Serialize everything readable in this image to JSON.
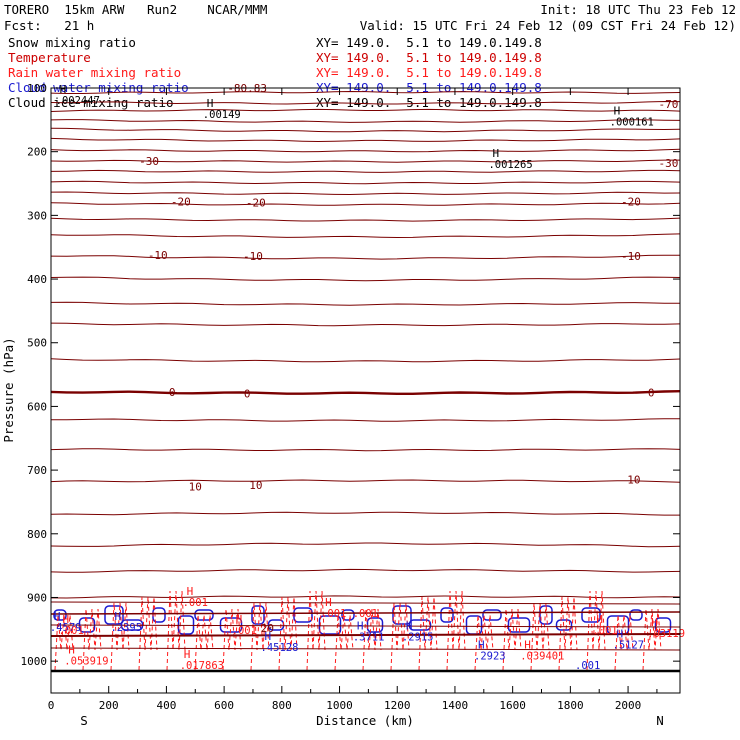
{
  "header": {
    "model": "TORERO  15km ARW   Run2    NCAR/MMM",
    "init": "Init: 18 UTC Thu 23 Feb 12",
    "fcst": "Fcst:   21 h",
    "valid": "Valid: 15 UTC Fri 24 Feb 12 (09 CST Fri 24 Feb 12)"
  },
  "colors": {
    "black": "#000000",
    "temperature": "#7a0000",
    "rain": "#ff1a1a",
    "cloud_water": "#1a1ad0",
    "ice": "#000000"
  },
  "legend": [
    {
      "label": "Snow mixing ratio",
      "xy": "XY= 149.0.  5.1 to 149.0.149.8",
      "color": "#000000"
    },
    {
      "label": "Temperature",
      "xy": "XY= 149.0.  5.1 to 149.0.149.8",
      "color": "#cc0000"
    },
    {
      "label": "Rain water mixing ratio",
      "xy": "XY= 149.0.  5.1 to 149.0.149.8",
      "color": "#ff1a1a"
    },
    {
      "label": "Cloud water mixing ratio",
      "xy": "XY= 149.0.  5.1 to 149.0.149.8",
      "color": "#1a1ad0"
    },
    {
      "label": "Cloud ice mixing ratio",
      "xy": "XY= 149.0.  5.1 to 149.0.149.8",
      "color": "#000000"
    }
  ],
  "chart_data": {
    "type": "contour-cross-section",
    "xlabel": "Distance (km)",
    "ylabel": "Pressure (hPa)",
    "xlim": [
      0,
      2180
    ],
    "ylim": [
      100,
      1050
    ],
    "x_ticks": [
      0,
      200,
      400,
      600,
      800,
      1000,
      1200,
      1400,
      1600,
      1800,
      2000
    ],
    "y_ticks": [
      200,
      300,
      400,
      500,
      600,
      700,
      800,
      900,
      1000
    ],
    "y_tick_labels": [
      "200",
      "300",
      "400",
      "500",
      "600",
      "700",
      "800",
      "900",
      "1000"
    ],
    "y_label_100": "100",
    "end_labels": {
      "left": "S",
      "right": "N"
    },
    "temperature_contours": [
      {
        "label": "-80.83",
        "x": 680,
        "p": 100
      },
      {
        "label": "-70",
        "x": 2140,
        "p": 125
      },
      {
        "label": "-30",
        "x": 340,
        "p": 215
      },
      {
        "label": "-30",
        "x": 2140,
        "p": 218
      },
      {
        "label": "-20",
        "x": 450,
        "p": 278
      },
      {
        "label": "-20",
        "x": 710,
        "p": 280
      },
      {
        "label": "-20",
        "x": 2010,
        "p": 278
      },
      {
        "label": "-10",
        "x": 370,
        "p": 362
      },
      {
        "label": "-10",
        "x": 700,
        "p": 364
      },
      {
        "label": "-10",
        "x": 2010,
        "p": 364
      },
      {
        "label": "0",
        "x": 420,
        "p": 577
      },
      {
        "label": "0",
        "x": 680,
        "p": 580
      },
      {
        "label": "0",
        "x": 2080,
        "p": 578
      },
      {
        "label": "10",
        "x": 500,
        "p": 726
      },
      {
        "label": "10",
        "x": 710,
        "p": 723
      },
      {
        "label": "10",
        "x": 2020,
        "p": 715
      },
      {
        "label": "20",
        "x": 750,
        "p": 948
      }
    ],
    "max_markers": [
      {
        "mark": "H",
        "value": ".002447",
        "x": 30,
        "p": 108,
        "color": "black"
      },
      {
        "mark": "H",
        "value": ".00149",
        "x": 540,
        "p": 130,
        "color": "black"
      },
      {
        "mark": "H",
        "value": ".000161",
        "x": 1950,
        "p": 142,
        "color": "black"
      },
      {
        "mark": "H",
        "value": ".001265",
        "x": 1530,
        "p": 208,
        "color": "black"
      },
      {
        "mark": "H",
        "value": ".001",
        "x": 470,
        "p": 896,
        "color": "red"
      },
      {
        "mark": "H",
        "value": ".001 .001",
        "x": 950,
        "p": 913,
        "color": "red"
      },
      {
        "mark": "H",
        "value": ".2395",
        "x": 220,
        "p": 935,
        "color": "blue"
      },
      {
        "mark": "H",
        "value": ".4579",
        "x": 10,
        "p": 935,
        "color": "blue"
      },
      {
        "mark": "H",
        "value": ".001",
        "x": 40,
        "p": 940,
        "color": "red"
      },
      {
        "mark": "H",
        "value": ".053919",
        "x": 60,
        "p": 988,
        "color": "red"
      },
      {
        "mark": "H",
        "value": ".001",
        "x": 640,
        "p": 940,
        "color": "red"
      },
      {
        "mark": "H",
        "value": ".45128",
        "x": 740,
        "p": 967,
        "color": "blue"
      },
      {
        "mark": "H",
        "value": ".017863",
        "x": 460,
        "p": 995,
        "color": "red"
      },
      {
        "mark": "H",
        "value": ".3711",
        "x": 1060,
        "p": 950,
        "color": "blue"
      },
      {
        "mark": "H",
        "value": ".2915",
        "x": 1230,
        "p": 950,
        "color": "blue"
      },
      {
        "mark": "H",
        "value": ".2923",
        "x": 1480,
        "p": 980,
        "color": "blue"
      },
      {
        "mark": "H",
        "value": ".039401",
        "x": 1640,
        "p": 980,
        "color": "red"
      },
      {
        "mark": "H",
        "value": ".001",
        "x": 1890,
        "p": 940,
        "color": "red"
      },
      {
        "mark": "H",
        "value": ".5127",
        "x": 1960,
        "p": 963,
        "color": "blue"
      },
      {
        "mark": "H",
        "value": ".03119",
        "x": 2080,
        "p": 945,
        "color": "red"
      },
      {
        "mark": "",
        "value": ".001",
        "x": 1830,
        "p": 995,
        "color": "blue"
      }
    ]
  }
}
